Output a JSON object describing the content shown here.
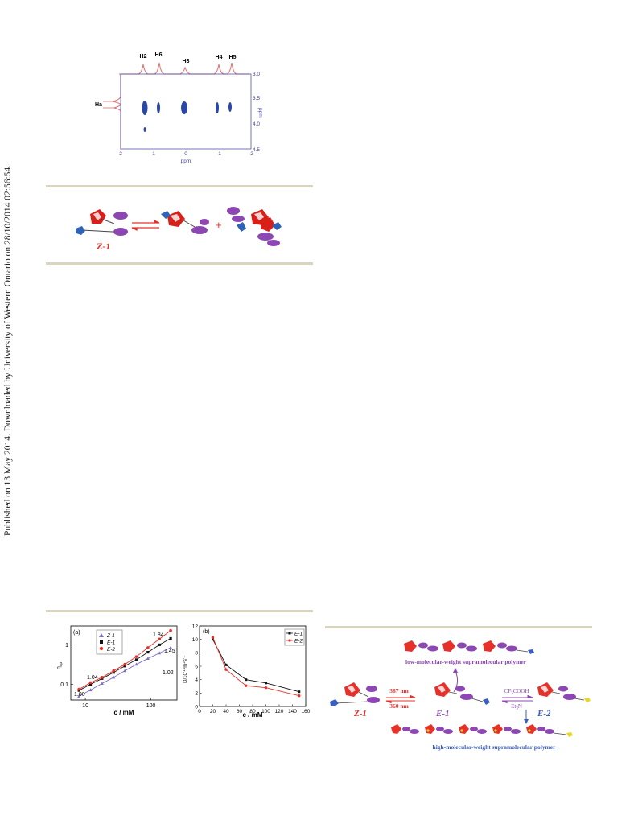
{
  "side_stamp": "Published on 13 May 2014. Downloaded by University of Western Ontario on 28/10/2014 02:56:54.",
  "nmr": {
    "peaks": [
      "H2",
      "H6",
      "H3",
      "H4",
      "H5"
    ],
    "side_label": "Ha",
    "x_ticks": [
      "2",
      "1",
      "0",
      "-1",
      "-2"
    ],
    "x_label": "ppm",
    "y_ticks": [
      "3.0",
      "3.5",
      "4.0",
      "4.5"
    ],
    "y_label": "ppm",
    "colors": {
      "spectrum": "#e07070",
      "contour": "#2a47a8",
      "axis": "#3b3ba0"
    }
  },
  "scheme1": {
    "label": "Z-1",
    "plus": "+",
    "colors": {
      "label": "#e8302a",
      "arrow": "#e8302a",
      "red": "#d8201a",
      "purple": "#8d47b3",
      "blue": "#2f63b8"
    }
  },
  "fig_a": {
    "panel": "(a)",
    "ylabel": "η",
    "ylabel_sub": "sp",
    "xlabel": "c / mM",
    "y_ticks": [
      "1",
      "0.1"
    ],
    "x_ticks": [
      "10",
      "100"
    ],
    "legend": [
      "Z-1",
      "E-1",
      "E-2"
    ],
    "slopes": [
      "1.84",
      "1.45",
      "1.04",
      "1.02",
      "1.00"
    ]
  },
  "fig_b": {
    "panel": "(b)",
    "ylabel": "D/10",
    "ylabel_sup": "-10",
    "ylabel_tail": "m",
    "ylabel_sup2": "2",
    "ylabel_tail2": "s",
    "ylabel_sup3": "-1",
    "xlabel": "c / mM",
    "y_ticks": [
      "0",
      "2",
      "4",
      "6",
      "8",
      "10",
      "12"
    ],
    "x_ticks": [
      "0",
      "20",
      "40",
      "60",
      "80",
      "100",
      "120",
      "140",
      "160"
    ],
    "legend": [
      "E-1",
      "E-2"
    ]
  },
  "chart_data": [
    {
      "type": "line",
      "panel": "(a)",
      "xlabel": "c / mM",
      "ylabel": "ηsp",
      "x_scale": "log",
      "y_scale": "log",
      "xlim": [
        6,
        250
      ],
      "ylim": [
        0.04,
        3
      ],
      "legend_placement": "top-left",
      "series": [
        {
          "name": "Z-1",
          "color": "#7d6fc4",
          "marker": "triangle",
          "x": [
            8,
            12,
            18,
            27,
            40,
            60,
            90,
            135,
            200
          ],
          "y": [
            0.05,
            0.072,
            0.105,
            0.15,
            0.22,
            0.32,
            0.45,
            0.62,
            0.85
          ]
        },
        {
          "name": "E-1",
          "color": "#111111",
          "marker": "square",
          "x": [
            8,
            12,
            18,
            27,
            40,
            60,
            90,
            135,
            200
          ],
          "y": [
            0.07,
            0.1,
            0.14,
            0.2,
            0.29,
            0.42,
            0.65,
            1.0,
            1.45
          ]
        },
        {
          "name": "E-2",
          "color": "#e8302a",
          "marker": "circle",
          "x": [
            8,
            12,
            18,
            27,
            40,
            60,
            90,
            135,
            200
          ],
          "y": [
            0.075,
            0.11,
            0.15,
            0.22,
            0.32,
            0.5,
            0.85,
            1.4,
            2.3
          ]
        }
      ],
      "annotations": [
        "1.84",
        "1.45",
        "1.04",
        "1.02",
        "1.00"
      ]
    },
    {
      "type": "line",
      "panel": "(b)",
      "xlabel": "c / mM",
      "ylabel": "D/10-10m2s-1",
      "xlim": [
        0,
        160
      ],
      "ylim": [
        0,
        12
      ],
      "legend_placement": "top-right",
      "series": [
        {
          "name": "E-1",
          "color": "#111111",
          "marker": "square",
          "x": [
            20,
            40,
            70,
            100,
            150
          ],
          "y": [
            10.0,
            6.2,
            4.0,
            3.5,
            2.2
          ]
        },
        {
          "name": "E-2",
          "color": "#e8302a",
          "marker": "circle",
          "x": [
            20,
            40,
            70,
            100,
            150
          ],
          "y": [
            10.3,
            5.5,
            3.1,
            2.8,
            1.6
          ]
        }
      ]
    }
  ],
  "scheme2": {
    "top_caption": "low-molecular-weight supramolecular polymer",
    "bottom_caption": "high-molecular-weight supramolecular polymer",
    "z1": "Z-1",
    "e1": "E-1",
    "e2": "E-2",
    "nm_forward": "387 nm",
    "nm_back": "360 nm",
    "acid": "CF",
    "acid_sub": "3",
    "acid_tail": "COOH",
    "base": "Et",
    "base_sub": "3",
    "base_tail": "N",
    "colors": {
      "red": "#e8302a",
      "purple": "#8d47b3",
      "blue": "#3b5fc0",
      "yellow": "#e9d72a"
    }
  }
}
